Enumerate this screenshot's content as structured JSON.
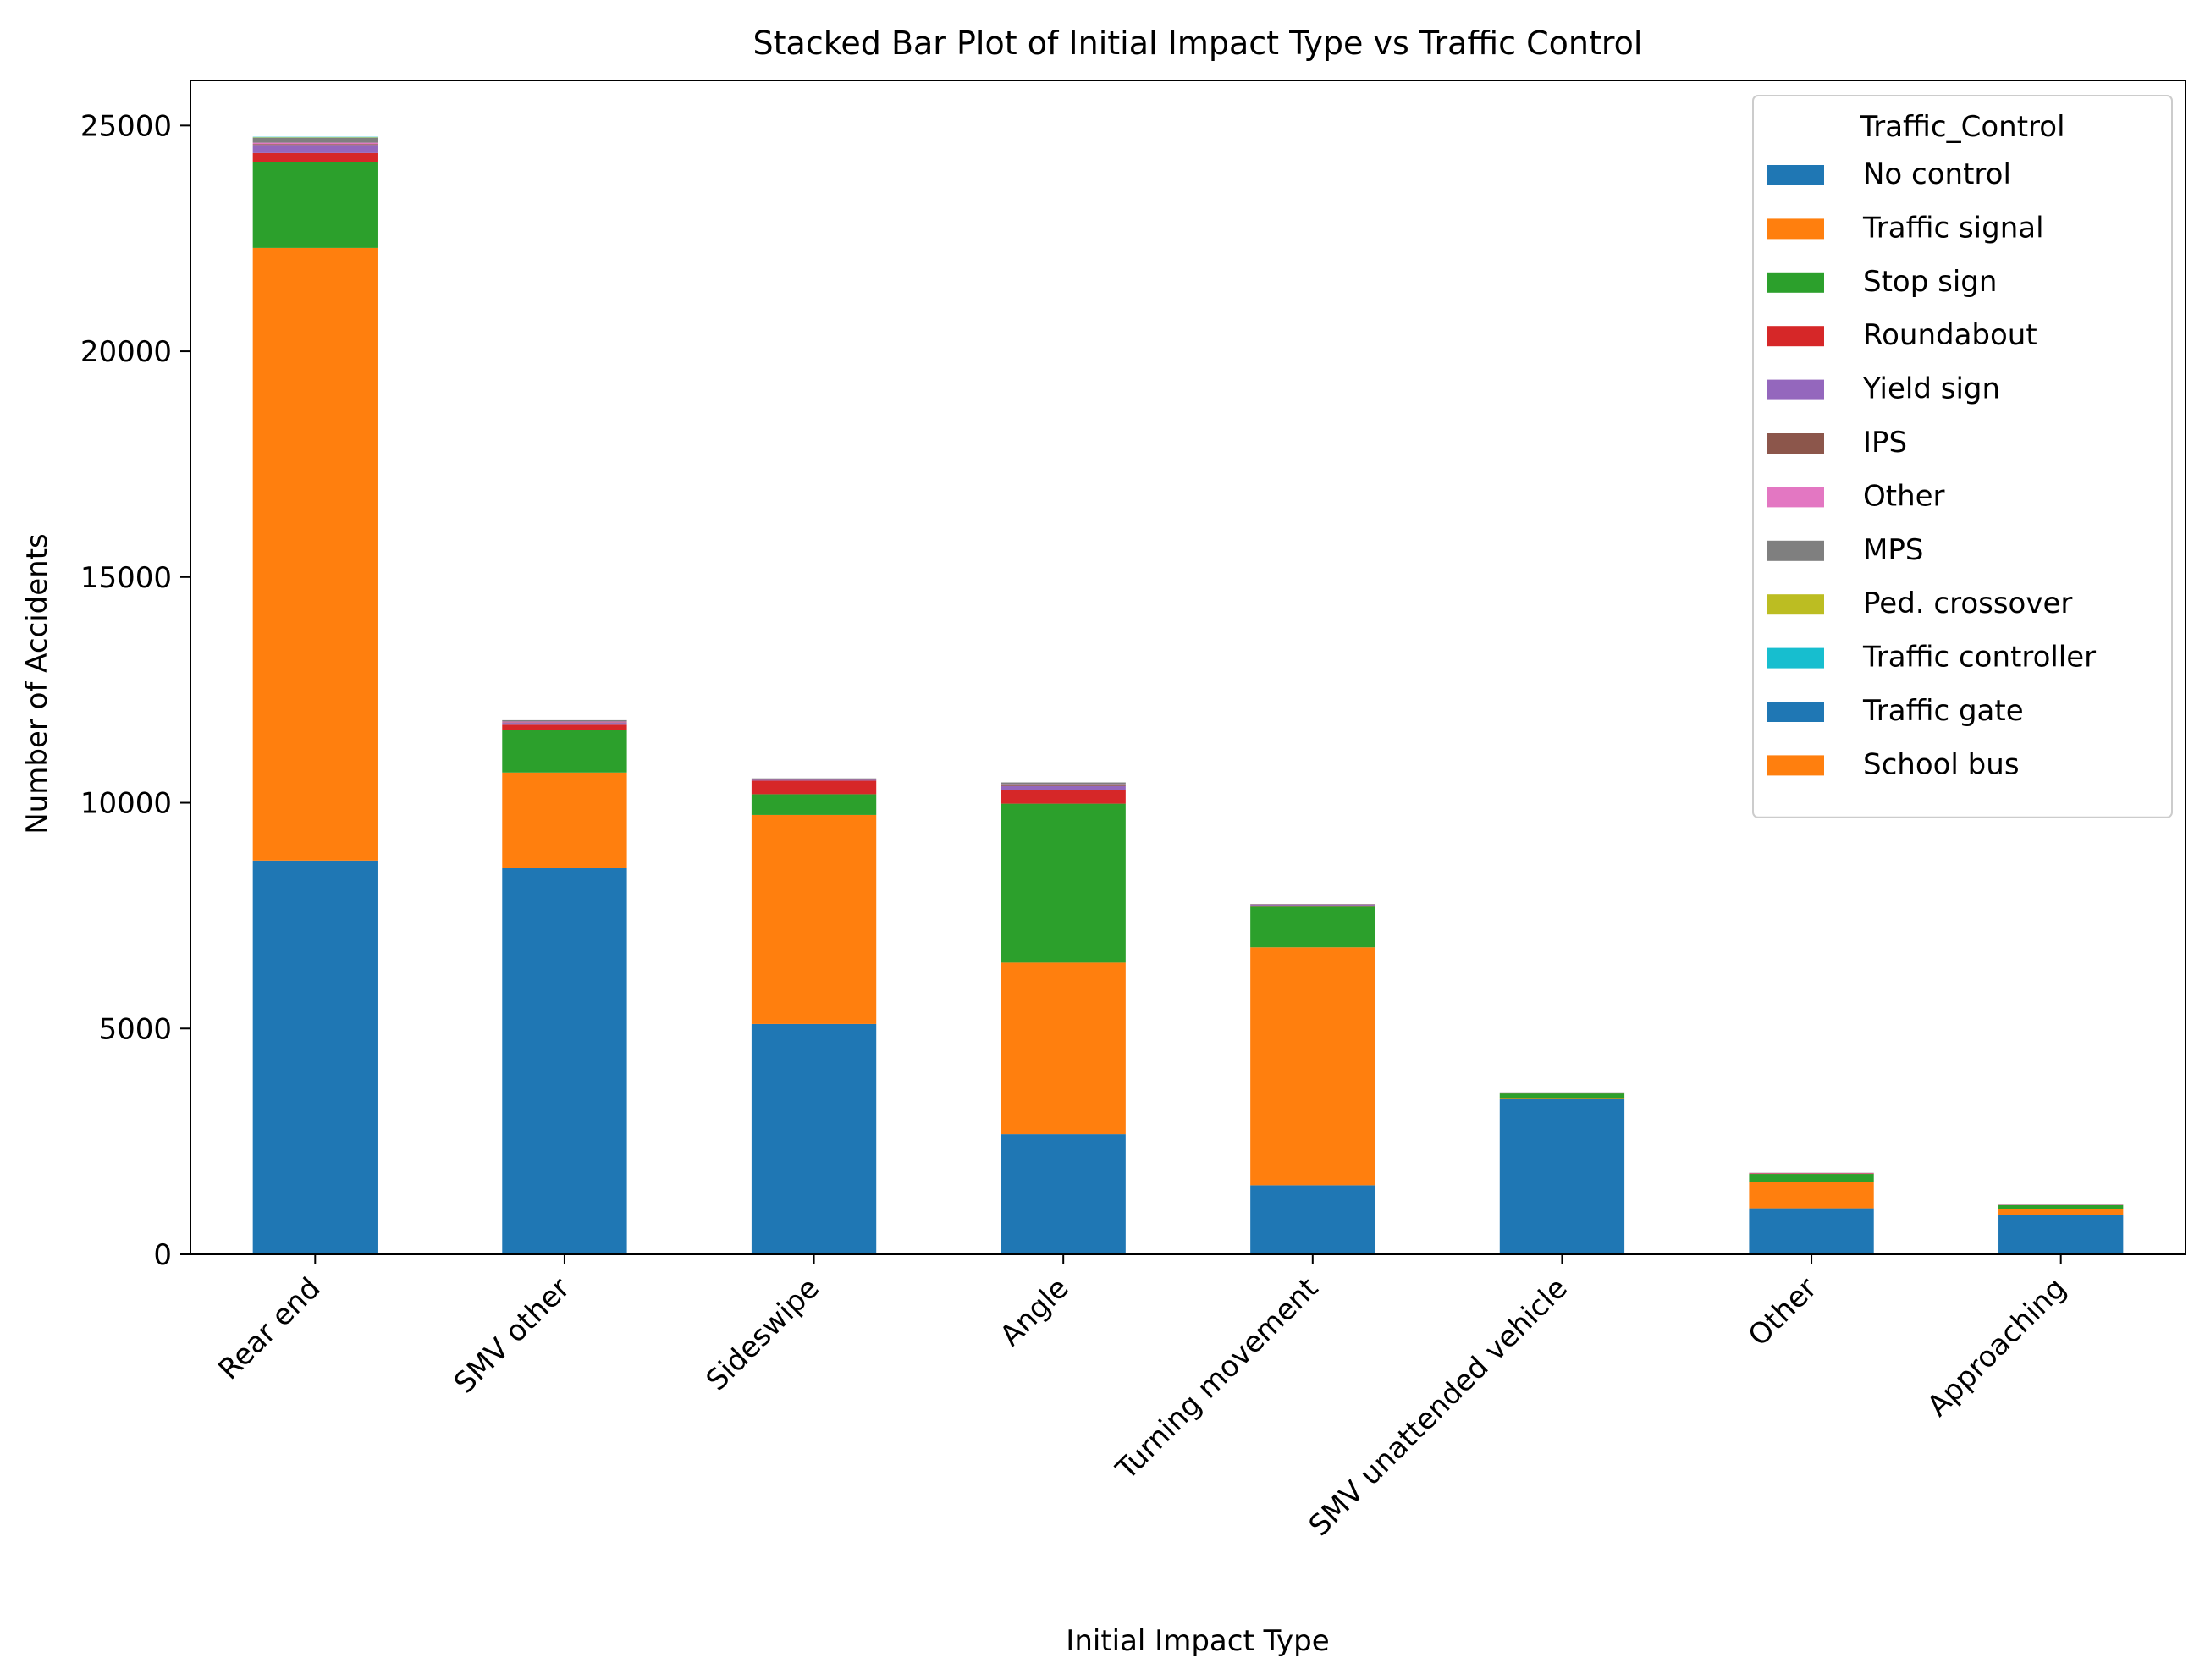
{
  "chart_data": {
    "type": "bar",
    "stacked": true,
    "title": "Stacked Bar Plot of Initial Impact Type vs Traffic Control",
    "xlabel": "Initial Impact Type",
    "ylabel": "Number of Accidents",
    "ylim": [
      0,
      26000
    ],
    "yticks": [
      0,
      5000,
      10000,
      15000,
      20000,
      25000
    ],
    "grid": false,
    "legend": {
      "title": "Traffic_Control",
      "placement": "top-right"
    },
    "categories": [
      "Rear end",
      "SMV other",
      "Sideswipe",
      "Angle",
      "Turning movement",
      "SMV unattended vehicle",
      "Other",
      "Approaching"
    ],
    "series": [
      {
        "name": "No control",
        "color": "#1f77b4",
        "values": [
          8720,
          8560,
          5100,
          2660,
          1530,
          3440,
          1020,
          880
        ]
      },
      {
        "name": "Traffic signal",
        "color": "#ff7f0e",
        "values": [
          13570,
          2110,
          4630,
          3800,
          5270,
          20,
          580,
          130
        ]
      },
      {
        "name": "Stop sign",
        "color": "#2ca02c",
        "values": [
          1900,
          950,
          460,
          3520,
          900,
          100,
          180,
          80
        ]
      },
      {
        "name": "Roundabout",
        "color": "#d62728",
        "values": [
          200,
          110,
          300,
          310,
          20,
          10,
          10,
          5
        ]
      },
      {
        "name": "Yield sign",
        "color": "#9467bd",
        "values": [
          180,
          40,
          20,
          80,
          20,
          5,
          5,
          5
        ]
      },
      {
        "name": "IPS",
        "color": "#8c564b",
        "values": [
          20,
          10,
          10,
          20,
          5,
          0,
          0,
          0
        ]
      },
      {
        "name": "Other",
        "color": "#e377c2",
        "values": [
          30,
          20,
          10,
          20,
          5,
          5,
          5,
          0
        ]
      },
      {
        "name": "MPS",
        "color": "#7f7f7f",
        "values": [
          110,
          30,
          10,
          40,
          10,
          5,
          5,
          0
        ]
      },
      {
        "name": "Ped. crossover",
        "color": "#bcbd22",
        "values": [
          10,
          0,
          0,
          0,
          0,
          0,
          0,
          0
        ]
      },
      {
        "name": "Traffic controller",
        "color": "#17becf",
        "values": [
          10,
          0,
          0,
          0,
          0,
          0,
          0,
          0
        ]
      },
      {
        "name": "Traffic gate",
        "color": "#1f77b4",
        "values": [
          0,
          0,
          0,
          0,
          0,
          0,
          0,
          0
        ]
      },
      {
        "name": "School bus",
        "color": "#ff7f0e",
        "values": [
          0,
          0,
          0,
          0,
          0,
          0,
          0,
          0
        ]
      }
    ]
  }
}
